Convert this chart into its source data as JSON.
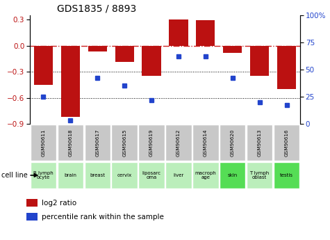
{
  "title": "GDS1835 / 8893",
  "samples": [
    "GSM90611",
    "GSM90618",
    "GSM90617",
    "GSM90615",
    "GSM90619",
    "GSM90612",
    "GSM90614",
    "GSM90620",
    "GSM90613",
    "GSM90616"
  ],
  "cell_lines": [
    "B lymph\nocyte",
    "brain",
    "breast",
    "cervix",
    "liposarc\noma",
    "liver",
    "macroph\nage",
    "skin",
    "T lymph\noblast",
    "testis"
  ],
  "log2_ratio": [
    -0.45,
    -0.82,
    -0.07,
    -0.19,
    -0.35,
    0.3,
    0.29,
    -0.08,
    -0.35,
    -0.5
  ],
  "percentile_rank": [
    25,
    3,
    42,
    35,
    22,
    62,
    62,
    42,
    20,
    17
  ],
  "ylim_left": [
    -0.9,
    0.35
  ],
  "ylim_right": [
    0,
    100
  ],
  "yticks_left": [
    -0.9,
    -0.6,
    -0.3,
    0,
    0.3
  ],
  "yticks_right": [
    0,
    25,
    50,
    75,
    100
  ],
  "bar_color": "#bb1111",
  "dot_color": "#2244cc",
  "hline_color": "#cc2222",
  "gray_box": "#c8c8c8",
  "green_box_light": "#bbeebb",
  "green_box_dark": "#55dd55",
  "cell_line_green": [
    false,
    false,
    false,
    false,
    false,
    false,
    false,
    true,
    false,
    true
  ]
}
